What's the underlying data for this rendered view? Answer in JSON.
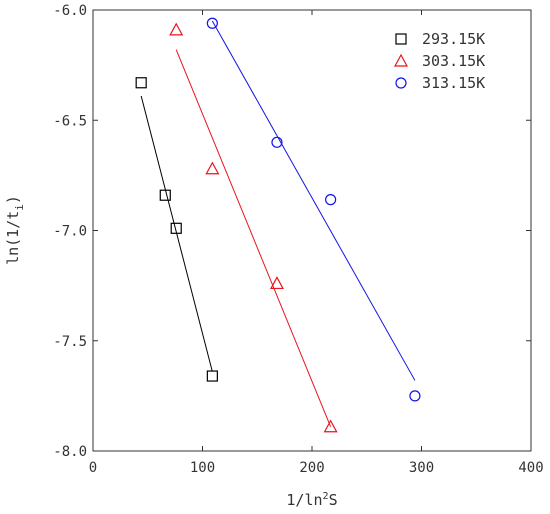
{
  "chart_data": {
    "type": "scatter",
    "title": "",
    "xlabel": "1/ln²S",
    "ylabel": "ln(1/t_i)",
    "xlim": [
      0,
      400
    ],
    "ylim": [
      -8.0,
      -6.0
    ],
    "xticks": [
      0,
      100,
      200,
      300,
      400
    ],
    "yticks": [
      -8.0,
      -7.5,
      -7.0,
      -6.5,
      -6.0
    ],
    "xtick_labels": [
      "0",
      "100",
      "200",
      "300",
      "400"
    ],
    "ytick_labels": [
      "-8.0",
      "-7.5",
      "-7.0",
      "-6.5",
      "-6.0"
    ],
    "grid": false,
    "legend_position": "top-right",
    "series": [
      {
        "name": "293.15K",
        "marker": "square",
        "color": "#000000",
        "x": [
          44,
          66,
          76,
          109
        ],
        "y": [
          -6.33,
          -6.84,
          -6.99,
          -7.66
        ],
        "fit_line": {
          "x": [
            44,
            109
          ],
          "y": [
            -6.39,
            -7.64
          ]
        }
      },
      {
        "name": "303.15K",
        "marker": "triangle",
        "color": "#e8141e",
        "x": [
          76,
          109,
          168,
          217
        ],
        "y": [
          -6.09,
          -6.72,
          -7.24,
          -7.89
        ],
        "fit_line": {
          "x": [
            76,
            217
          ],
          "y": [
            -6.18,
            -7.89
          ]
        }
      },
      {
        "name": "313.15K",
        "marker": "circle",
        "color": "#1414e8",
        "x": [
          109,
          168,
          217,
          294
        ],
        "y": [
          -6.06,
          -6.6,
          -6.86,
          -7.75
        ],
        "fit_line": {
          "x": [
            109,
            294
          ],
          "y": [
            -6.05,
            -7.68
          ]
        }
      }
    ]
  }
}
